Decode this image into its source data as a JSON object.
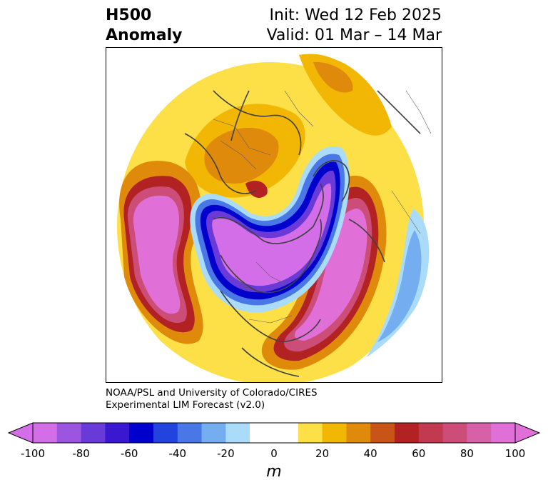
{
  "title": {
    "left_line1": "H500",
    "left_line2": "Anomaly",
    "right_line1": "Init: Wed 12 Feb 2025",
    "right_line2": "Valid: 01 Mar – 14 Mar"
  },
  "credit": {
    "line1": "NOAA/PSL and University of Colorado/CIRES",
    "line2": "Experimental LIM Forecast (v2.0)"
  },
  "colorbar": {
    "unit": "m",
    "ticks": [
      "-100",
      "-80",
      "-60",
      "-40",
      "-20",
      "0",
      "20",
      "40",
      "60",
      "80",
      "100"
    ],
    "colors": [
      "#d46ee8",
      "#9c55e0",
      "#6a3ad8",
      "#3a18d0",
      "#0000cc",
      "#2244dd",
      "#4a77e6",
      "#74aef0",
      "#aadcfa",
      "#ffffff",
      "#ffffff",
      "#fde047",
      "#f2b705",
      "#e08a0c",
      "#c85418",
      "#b22222",
      "#c23a50",
      "#cc4d78",
      "#d860a8",
      "#e070d8"
    ],
    "min_extend_color": "#d46ee8",
    "max_extend_color": "#e070d8"
  }
}
